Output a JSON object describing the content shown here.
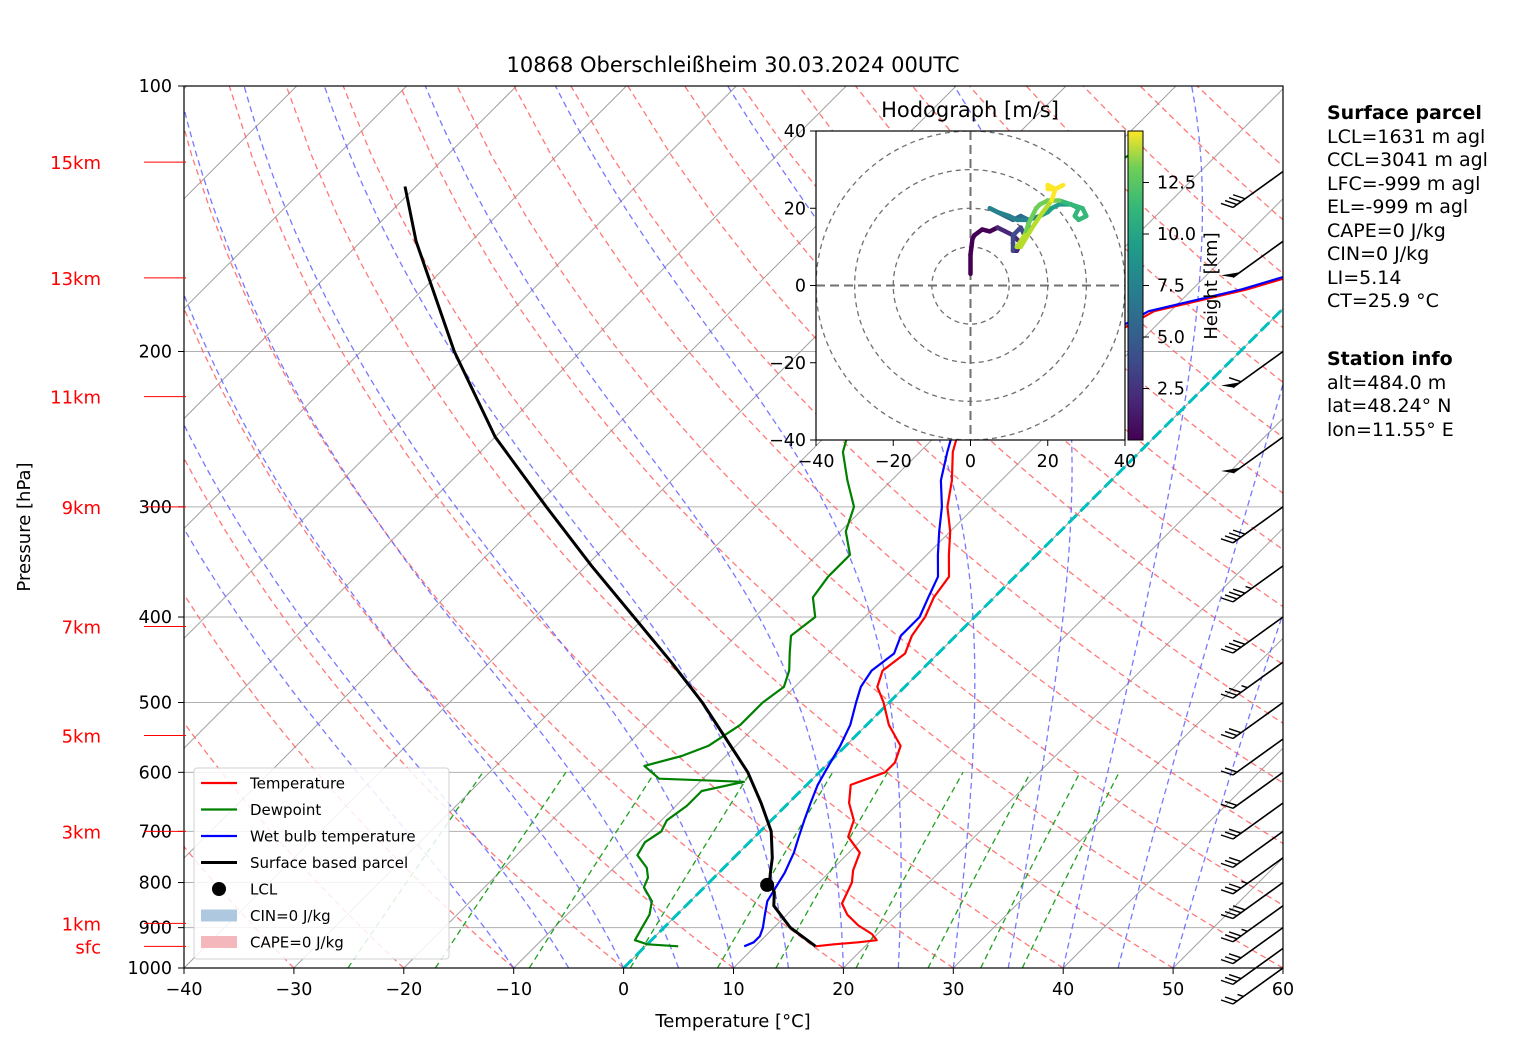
{
  "title": "10868 Oberschleißheim 30.03.2024 00UTC",
  "colors": {
    "temperature": "#ff0000",
    "dewpoint": "#008000",
    "wetbulb": "#0000ff",
    "parcel": "#000000",
    "isotherm_0": "#00bfbf",
    "dry_adiabat": "#ff6060",
    "moist_adiabat": "#6060ff",
    "mixing_ratio": "#20a020",
    "height_labels": "#ff0000"
  },
  "chart_data": [
    {
      "type": "line",
      "subtype": "skew-T log-p diagram",
      "xlabel": "Temperature [°C]",
      "ylabel": "Pressure [hPa]",
      "xlim": [
        -40,
        60
      ],
      "ylim": [
        1000,
        100
      ],
      "yscale": "log",
      "grid": true,
      "x_ticks": [
        "−40",
        "−30",
        "−20",
        "−10",
        "0",
        "10",
        "20",
        "30",
        "40",
        "50",
        "60"
      ],
      "y_ticks": [
        {
          "p": 1000,
          "label": "1000"
        },
        {
          "p": 900,
          "label": "900"
        },
        {
          "p": 800,
          "label": "800"
        },
        {
          "p": 700,
          "label": "700"
        },
        {
          "p": 600,
          "label": "600"
        },
        {
          "p": 500,
          "label": "500"
        },
        {
          "p": 400,
          "label": "400"
        },
        {
          "p": 300,
          "label": "300"
        },
        {
          "p": 200,
          "label": "200"
        },
        {
          "p": 100,
          "label": "100"
        }
      ],
      "height_labels": [
        {
          "label": "sfc",
          "p": 945
        },
        {
          "label": "1km",
          "p": 890
        },
        {
          "label": "3km",
          "p": 700
        },
        {
          "label": "5km",
          "p": 545
        },
        {
          "label": "7km",
          "p": 410
        },
        {
          "label": "9km",
          "p": 300
        },
        {
          "label": "11km",
          "p": 225
        },
        {
          "label": "13km",
          "p": 165
        },
        {
          "label": "15km",
          "p": 122
        }
      ],
      "series": [
        {
          "name": "Temperature",
          "points": [
            [
              945,
              15.5
            ],
            [
              940,
              17.0
            ],
            [
              935,
              19.0
            ],
            [
              930,
              20.5
            ],
            [
              915,
              19.5
            ],
            [
              895,
              17.5
            ],
            [
              870,
              15.5
            ],
            [
              845,
              14.0
            ],
            [
              800,
              13.0
            ],
            [
              775,
              12.0
            ],
            [
              740,
              11.0
            ],
            [
              710,
              8.5
            ],
            [
              680,
              7.5
            ],
            [
              650,
              5.5
            ],
            [
              620,
              4.0
            ],
            [
              600,
              6.0
            ],
            [
              585,
              6.0
            ],
            [
              560,
              5.0
            ],
            [
              530,
              2.0
            ],
            [
              500,
              -0.5
            ],
            [
              480,
              -2.5
            ],
            [
              460,
              -3.5
            ],
            [
              440,
              -3.0
            ],
            [
              420,
              -4.0
            ],
            [
              400,
              -4.5
            ],
            [
              380,
              -5.5
            ],
            [
              360,
              -6.0
            ],
            [
              340,
              -8.0
            ],
            [
              320,
              -10.0
            ],
            [
              300,
              -12.5
            ],
            [
              280,
              -14.5
            ],
            [
              260,
              -17.0
            ],
            [
              240,
              -19.0
            ],
            [
              230,
              -16.0
            ],
            [
              220,
              -17.5
            ],
            [
              210,
              -16.5
            ],
            [
              200,
              -14.5
            ],
            [
              190,
              -13.0
            ],
            [
              180,
              -11.5
            ],
            [
              170,
              -5.0
            ],
            [
              160,
              0.0
            ],
            [
              150,
              5.5
            ],
            [
              145,
              6.5
            ],
            [
              140,
              7.0
            ],
            [
              132,
              7.0
            ],
            [
              125,
              7.5
            ],
            [
              120,
              6.5
            ],
            [
              115,
              6.5
            ]
          ]
        },
        {
          "name": "Dewpoint",
          "points": [
            [
              945,
              3.0
            ],
            [
              940,
              0.0
            ],
            [
              930,
              -1.5
            ],
            [
              900,
              -2.0
            ],
            [
              870,
              -2.5
            ],
            [
              840,
              -3.5
            ],
            [
              810,
              -5.5
            ],
            [
              790,
              -6.0
            ],
            [
              770,
              -7.0
            ],
            [
              745,
              -9.0
            ],
            [
              720,
              -9.5
            ],
            [
              700,
              -9.0
            ],
            [
              680,
              -9.5
            ],
            [
              655,
              -9.0
            ],
            [
              630,
              -9.0
            ],
            [
              615,
              -6.0
            ],
            [
              610,
              -14.0
            ],
            [
              590,
              -16.5
            ],
            [
              575,
              -14.0
            ],
            [
              560,
              -12.5
            ],
            [
              530,
              -11.5
            ],
            [
              500,
              -11.5
            ],
            [
              480,
              -11.0
            ],
            [
              460,
              -12.0
            ],
            [
              440,
              -13.5
            ],
            [
              420,
              -15.0
            ],
            [
              400,
              -14.5
            ],
            [
              380,
              -16.5
            ],
            [
              360,
              -17.0
            ],
            [
              340,
              -17.0
            ],
            [
              320,
              -19.5
            ],
            [
              300,
              -21.0
            ],
            [
              280,
              -24.0
            ],
            [
              260,
              -27.0
            ],
            [
              240,
              -29.0
            ],
            [
              230,
              -31.5
            ],
            [
              220,
              -32.0
            ],
            [
              210,
              -33.5
            ],
            [
              200,
              -35.5
            ],
            [
              190,
              -36.0
            ],
            [
              180,
              -36.5
            ],
            [
              170,
              -38.5
            ],
            [
              160,
              -37.0
            ],
            [
              150,
              -34.5
            ],
            [
              140,
              -32.0
            ],
            [
              132,
              -30.5
            ],
            [
              125,
              -29.0
            ],
            [
              120,
              -28.0
            ]
          ]
        },
        {
          "name": "Wet bulb temperature",
          "points": [
            [
              945,
              9.0
            ],
            [
              935,
              9.5
            ],
            [
              920,
              9.5
            ],
            [
              900,
              9.0
            ],
            [
              870,
              8.0
            ],
            [
              840,
              7.0
            ],
            [
              810,
              6.5
            ],
            [
              780,
              6.0
            ],
            [
              760,
              5.5
            ],
            [
              740,
              5.0
            ],
            [
              710,
              4.0
            ],
            [
              680,
              3.0
            ],
            [
              650,
              2.0
            ],
            [
              620,
              1.0
            ],
            [
              600,
              0.5
            ],
            [
              580,
              0.0
            ],
            [
              560,
              -0.5
            ],
            [
              530,
              -1.5
            ],
            [
              500,
              -3.0
            ],
            [
              480,
              -4.0
            ],
            [
              460,
              -4.5
            ],
            [
              440,
              -4.0
            ],
            [
              420,
              -5.0
            ],
            [
              400,
              -5.0
            ],
            [
              380,
              -6.0
            ],
            [
              360,
              -7.0
            ],
            [
              340,
              -9.0
            ],
            [
              320,
              -11.0
            ],
            [
              300,
              -13.0
            ],
            [
              280,
              -15.5
            ],
            [
              260,
              -17.5
            ],
            [
              240,
              -19.5
            ],
            [
              230,
              -16.5
            ],
            [
              220,
              -18.0
            ],
            [
              210,
              -17.0
            ],
            [
              200,
              -15.0
            ],
            [
              190,
              -13.5
            ],
            [
              180,
              -12.0
            ],
            [
              170,
              -5.5
            ],
            [
              160,
              -0.5
            ],
            [
              150,
              5.0
            ],
            [
              145,
              6.0
            ],
            [
              140,
              6.5
            ],
            [
              132,
              6.5
            ],
            [
              125,
              7.0
            ],
            [
              120,
              6.0
            ],
            [
              115,
              6.0
            ]
          ]
        },
        {
          "name": "Surface based parcel",
          "points": [
            [
              945,
              15.5
            ],
            [
              900,
              11.5
            ],
            [
              850,
              8.0
            ],
            [
              820,
              6.8
            ],
            [
              800,
              5.5
            ],
            [
              780,
              4.7
            ],
            [
              750,
              3.5
            ],
            [
              700,
              1.0
            ],
            [
              650,
              -2.5
            ],
            [
              600,
              -6.5
            ],
            [
              550,
              -11.5
            ],
            [
              500,
              -17.0
            ],
            [
              450,
              -23.5
            ],
            [
              400,
              -31.0
            ],
            [
              350,
              -39.5
            ],
            [
              300,
              -49.0
            ],
            [
              250,
              -60.0
            ],
            [
              200,
              -71.5
            ],
            [
              150,
              -85.0
            ],
            [
              130,
              -91.0
            ]
          ]
        }
      ],
      "lcl": {
        "label": "LCL",
        "p": 805,
        "t": 5.5
      },
      "legend": {
        "position": "lower-left",
        "entries": [
          "Temperature",
          "Dewpoint",
          "Wet bulb temperature",
          "Surface based parcel",
          "LCL",
          "CIN=0 J/kg",
          "CAPE=0 J/kg"
        ]
      },
      "wind_barbs": [
        {
          "p": 1000,
          "speed_kt": 25
        },
        {
          "p": 950,
          "speed_kt": 30
        },
        {
          "p": 900,
          "speed_kt": 30
        },
        {
          "p": 850,
          "speed_kt": 35
        },
        {
          "p": 800,
          "speed_kt": 40
        },
        {
          "p": 750,
          "speed_kt": 35
        },
        {
          "p": 700,
          "speed_kt": 30
        },
        {
          "p": 650,
          "speed_kt": 30
        },
        {
          "p": 600,
          "speed_kt": 20
        },
        {
          "p": 550,
          "speed_kt": 20
        },
        {
          "p": 500,
          "speed_kt": 30
        },
        {
          "p": 450,
          "speed_kt": 35
        },
        {
          "p": 400,
          "speed_kt": 40
        },
        {
          "p": 350,
          "speed_kt": 45
        },
        {
          "p": 300,
          "speed_kt": 40
        },
        {
          "p": 250,
          "speed_kt": 50
        },
        {
          "p": 200,
          "speed_kt": 60
        },
        {
          "p": 150,
          "speed_kt": 50
        },
        {
          "p": 125,
          "speed_kt": 40
        }
      ]
    },
    {
      "type": "line",
      "subtype": "hodograph",
      "title": "Hodograph [m/s]",
      "xlim": [
        -40,
        40
      ],
      "ylim": [
        -40,
        40
      ],
      "ticks": [
        "−40",
        "−20",
        "0",
        "20",
        "40"
      ],
      "rings": [
        10,
        20,
        30,
        40
      ],
      "colorbar": {
        "label": "Height [km]",
        "ticks": [
          "2.5",
          "5.0",
          "7.5",
          "10.0",
          "12.5"
        ],
        "range": [
          0,
          15
        ],
        "colormap": "viridis"
      },
      "points": [
        [
          0,
          3
        ],
        [
          0,
          8
        ],
        [
          0.5,
          12
        ],
        [
          1,
          13
        ],
        [
          3,
          14.5
        ],
        [
          5,
          14
        ],
        [
          7,
          15
        ],
        [
          9,
          14
        ],
        [
          11,
          13
        ],
        [
          13,
          11
        ],
        [
          12,
          9
        ],
        [
          11,
          9
        ],
        [
          11,
          11
        ],
        [
          11,
          13
        ],
        [
          13,
          15
        ],
        [
          14,
          13
        ],
        [
          15,
          14.5
        ],
        [
          15,
          17
        ],
        [
          13,
          18
        ],
        [
          11,
          17
        ],
        [
          9,
          18
        ],
        [
          7,
          19
        ],
        [
          5,
          20
        ],
        [
          7,
          19
        ],
        [
          10,
          18
        ],
        [
          12,
          17
        ],
        [
          15,
          17
        ],
        [
          18,
          18
        ],
        [
          20,
          19
        ],
        [
          21,
          20
        ],
        [
          23,
          21
        ],
        [
          26,
          21
        ],
        [
          28,
          20
        ],
        [
          27,
          18
        ],
        [
          28,
          17
        ],
        [
          30,
          18
        ],
        [
          29,
          20
        ],
        [
          26,
          21
        ],
        [
          23,
          22
        ],
        [
          20,
          22
        ],
        [
          18,
          21
        ],
        [
          17,
          20
        ],
        [
          15,
          16
        ],
        [
          14,
          13
        ],
        [
          12,
          10
        ],
        [
          13,
          10
        ],
        [
          16,
          15
        ],
        [
          18,
          18
        ],
        [
          21,
          22
        ],
        [
          22,
          25
        ],
        [
          20,
          26
        ],
        [
          20,
          25
        ],
        [
          22,
          25
        ],
        [
          24,
          26
        ]
      ]
    }
  ],
  "surface_parcel": {
    "header": "Surface parcel",
    "lines": [
      "LCL=1631 m agl",
      "CCL=3041 m agl",
      "LFC=-999 m agl",
      "EL=-999 m agl",
      "CAPE=0 J/kg",
      "CIN=0 J/kg",
      "LI=5.14",
      "CT=25.9 °C"
    ]
  },
  "station_info": {
    "header": "Station info",
    "lines": [
      "alt=484.0 m",
      "lat=48.24° N",
      "lon=11.55° E"
    ]
  }
}
